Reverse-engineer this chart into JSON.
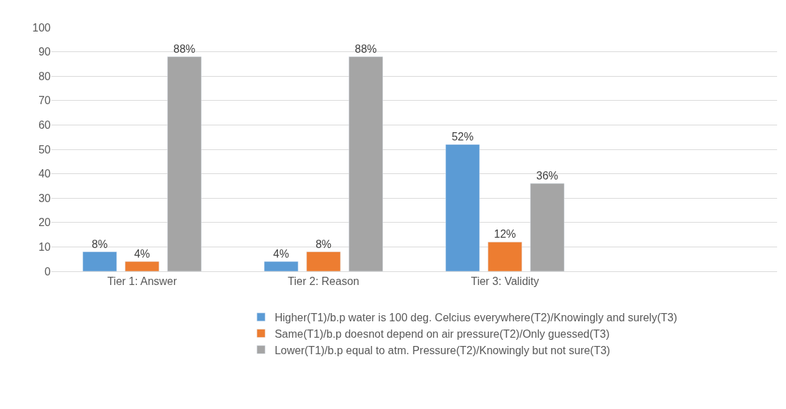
{
  "chart_data": {
    "type": "bar",
    "categories": [
      "Tier 1: Answer",
      "Tier 2: Reason",
      "Tier 3: Validity",
      null
    ],
    "series": [
      {
        "name": "Higher(T1)/b.p water is 100 deg. Celcius everywhere(T2)/Knowingly and surely(T3)",
        "color": "#5b9bd5",
        "values": [
          8,
          4,
          52,
          null
        ],
        "value_labels": [
          "8%",
          "4%",
          "52%",
          null
        ]
      },
      {
        "name": "Same(T1)/b.p doesnot depend on air pressure(T2)/Only guessed(T3)",
        "color": "#ed7d31",
        "values": [
          4,
          8,
          12,
          null
        ],
        "value_labels": [
          "4%",
          "8%",
          "12%",
          null
        ]
      },
      {
        "name": "Lower(T1)/b.p equal to atm. Pressure(T2)/Knowingly but not sure(T3)",
        "color": "#a5a5a5",
        "values": [
          88,
          88,
          36,
          null
        ],
        "value_labels": [
          "88%",
          "88%",
          "36%",
          null
        ]
      }
    ],
    "ylim": [
      0,
      100
    ],
    "yticks": [
      0,
      10,
      20,
      30,
      40,
      50,
      60,
      70,
      80,
      90,
      100
    ],
    "grid": "y",
    "legend": "bottom"
  }
}
